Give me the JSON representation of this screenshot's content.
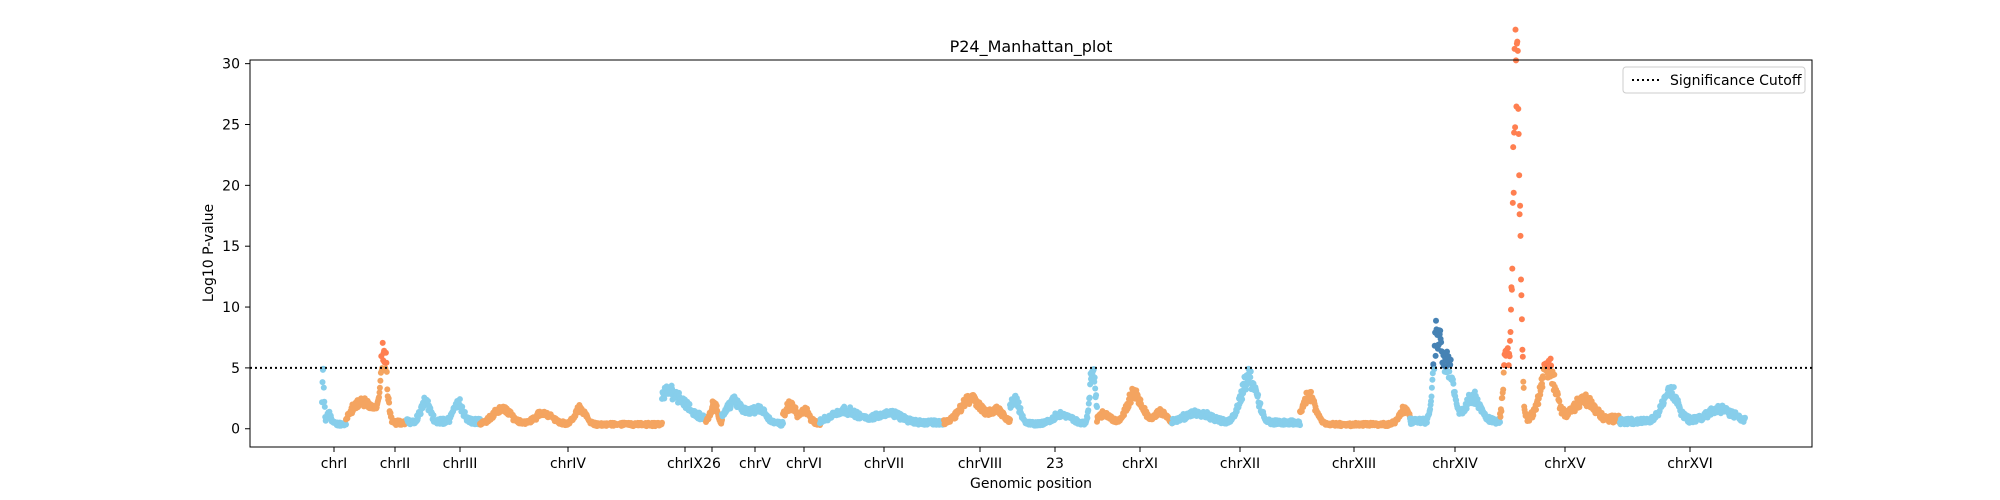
{
  "chart_data": {
    "type": "scatter",
    "title": "P24_Manhattan_plot",
    "xlabel": "Genomic position",
    "ylabel": "Log10 P-value",
    "ylim": [
      -1.5,
      30.3
    ],
    "yticks": [
      0,
      5,
      10,
      15,
      20,
      25,
      30
    ],
    "grid": false,
    "legend_position": "top-right",
    "cutoff": {
      "label": "Significance Cutoff",
      "value": 5,
      "style": "dotted",
      "color": "#000000"
    },
    "colors": {
      "blue": "#87CEEB",
      "orange": "#F4A460",
      "sig_orange": "#FF7F50",
      "sig_blue": "#4682B4"
    },
    "segments": [
      {
        "label": "chrI",
        "color": "blue",
        "base": 0.4,
        "peaks": [
          [
            0.05,
            4.1,
            0.04
          ],
          [
            0.3,
            0.9,
            0.08
          ]
        ]
      },
      {
        "label": "chrII",
        "color": "orange",
        "base": 0.5,
        "peaks": [
          [
            0.2,
            1.5,
            0.12
          ],
          [
            0.62,
            6.0,
            0.05
          ],
          [
            0.42,
            1.2,
            0.1
          ]
        ]
      },
      {
        "label": "chrIII",
        "color": "blue",
        "base": 0.6,
        "peaks": [
          [
            0.25,
            1.7,
            0.06
          ],
          [
            0.7,
            1.6,
            0.06
          ]
        ]
      },
      {
        "label": "chrIV",
        "color": "orange",
        "base": 0.35,
        "peaks": [
          [
            0.12,
            1.3,
            0.05
          ],
          [
            0.35,
            0.9,
            0.05
          ],
          [
            0.55,
            1.3,
            0.03
          ]
        ]
      },
      {
        "label": "chrIX",
        "color": "blue",
        "base": 0.8,
        "peaks": [
          [
            0.2,
            2.3,
            0.3
          ]
        ]
      },
      {
        "label": "26",
        "color": "orange",
        "base": 0.5,
        "peaks": [
          [
            0.5,
            1.5,
            0.2
          ]
        ]
      },
      {
        "label": "chrV",
        "color": "blue",
        "base": 0.4,
        "peaks": [
          [
            0.2,
            1.8,
            0.15
          ],
          [
            0.6,
            1.2,
            0.12
          ]
        ]
      },
      {
        "label": "chrVI",
        "color": "orange",
        "base": 0.5,
        "peaks": [
          [
            0.2,
            1.4,
            0.15
          ],
          [
            0.6,
            1.0,
            0.1
          ]
        ]
      },
      {
        "label": "chrVII",
        "color": "blue",
        "base": 0.5,
        "peaks": [
          [
            0.2,
            1.0,
            0.1
          ],
          [
            0.55,
            0.8,
            0.1
          ]
        ]
      },
      {
        "label": "chrVIII",
        "color": "orange",
        "base": 0.5,
        "peaks": [
          [
            0.4,
            2.0,
            0.15
          ],
          [
            0.8,
            1.0,
            0.1
          ]
        ]
      },
      {
        "label": "23",
        "color": "blue",
        "base": 0.4,
        "peaks": [
          [
            0.05,
            2.0,
            0.06
          ],
          [
            0.6,
            0.8,
            0.1
          ],
          [
            0.95,
            4.8,
            0.03
          ]
        ]
      },
      {
        "label": "chrXI",
        "color": "orange",
        "base": 0.4,
        "peaks": [
          [
            0.5,
            2.5,
            0.1
          ],
          [
            0.1,
            0.8,
            0.08
          ],
          [
            0.85,
            1.0,
            0.08
          ]
        ]
      },
      {
        "label": "chrXII",
        "color": "blue",
        "base": 0.5,
        "peaks": [
          [
            0.6,
            3.8,
            0.06
          ],
          [
            0.2,
            0.8,
            0.1
          ]
        ]
      },
      {
        "label": "chrXIII",
        "color": "orange",
        "base": 0.35,
        "peaks": [
          [
            0.08,
            2.3,
            0.06
          ],
          [
            0.95,
            1.2,
            0.05
          ]
        ]
      },
      {
        "label": "chrXIV",
        "color": "blue",
        "base": 0.6,
        "peaks": [
          [
            0.3,
            6.8,
            0.04
          ],
          [
            0.42,
            4.8,
            0.06
          ],
          [
            0.7,
            2.0,
            0.08
          ]
        ]
      },
      {
        "label": "chrXV",
        "color": "orange",
        "base": 0.8,
        "peaks": [
          [
            0.05,
            5.5,
            0.02
          ],
          [
            0.13,
            26.0,
            0.025
          ],
          [
            0.16,
            9.0,
            0.02
          ],
          [
            0.4,
            4.3,
            0.06
          ],
          [
            0.7,
            1.6,
            0.08
          ]
        ]
      },
      {
        "label": "chrXVI",
        "color": "blue",
        "base": 0.6,
        "peaks": [
          [
            0.4,
            2.5,
            0.06
          ],
          [
            0.8,
            1.0,
            0.1
          ]
        ]
      }
    ]
  }
}
